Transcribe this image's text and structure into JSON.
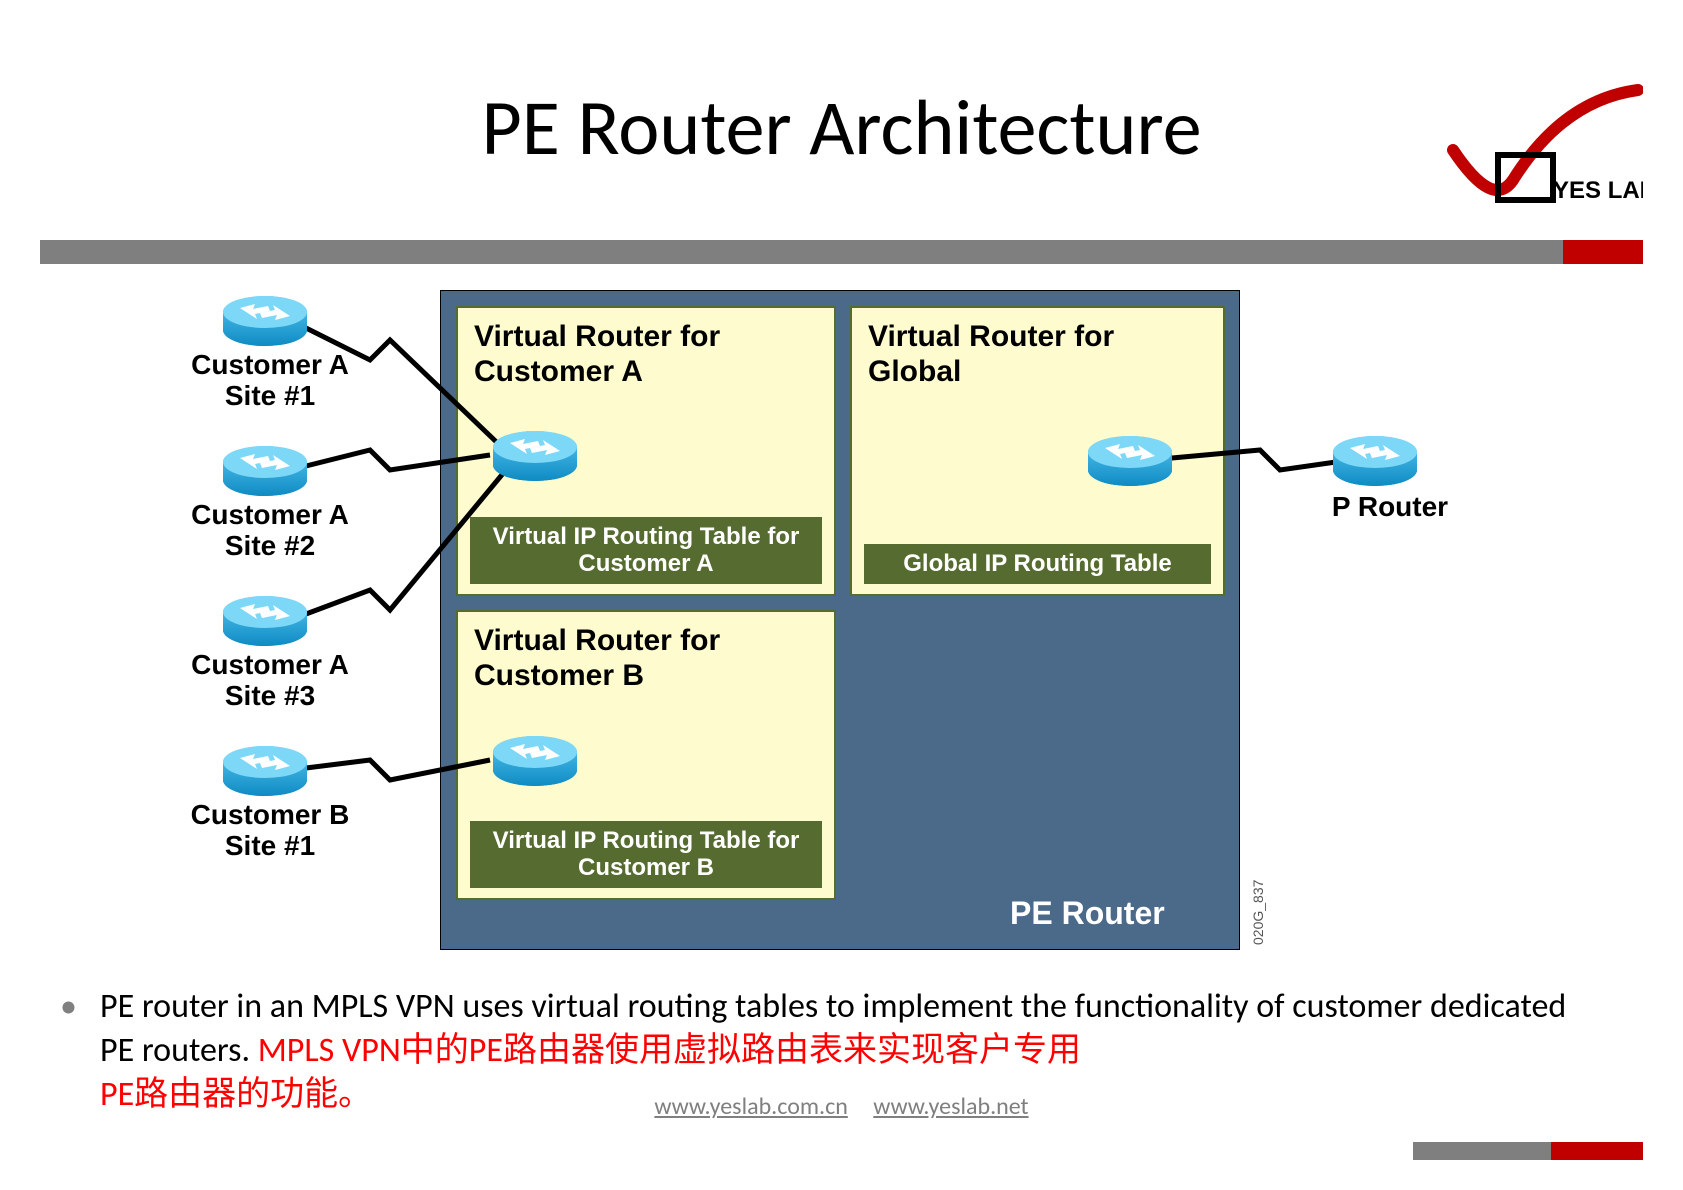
{
  "title": "PE Router Architecture",
  "logo_text": "YES LAB",
  "colors": {
    "gray_bar": "#7f7f7f",
    "red": "#c00000",
    "pe_box": "#4b6a8a",
    "vrf_bg": "#fefbce",
    "vrf_border": "#556b2f",
    "rt_table_bg": "#556b2f",
    "rt_table_text": "#ffffff",
    "router_top": "#5bc8f2",
    "router_bottom": "#0e8bc3",
    "bullet_dot": "#808080",
    "bullet_red": "#ff0000",
    "footer_link": "#7f7f7f"
  },
  "customers": [
    {
      "label": "Customer A\nSite #1"
    },
    {
      "label": "Customer A\nSite #2"
    },
    {
      "label": "Customer A\nSite #3"
    },
    {
      "label": "Customer B\nSite #1"
    }
  ],
  "vrf_a": {
    "title": "Virtual Router for Customer A",
    "table": "Virtual IP Routing Table for Customer A"
  },
  "vrf_b": {
    "title": "Virtual Router for Customer B",
    "table": "Virtual IP Routing Table for Customer B"
  },
  "vrf_global": {
    "title": "Virtual Router for Global",
    "table": "Global IP Routing Table"
  },
  "pe_label": "PE Router",
  "p_router_label": "P Router",
  "side_code": "020G_837",
  "bullet": {
    "en": "PE router in an MPLS VPN uses virtual routing tables to implement the  functionality of customer dedicated PE routers. ",
    "zh1": "MPLS VPN中的PE路由器使用虚拟路由表来实现客户专用",
    "zh2": "PE路由器的功能。"
  },
  "footer": {
    "link1": "www.yeslab.com.cn",
    "link2": "www.yeslab.net"
  }
}
